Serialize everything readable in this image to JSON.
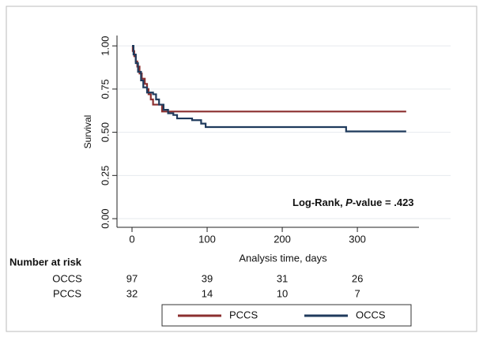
{
  "chart_data": {
    "type": "line",
    "drawstyle": "steps-post",
    "ylabel": "Survival",
    "xlabel": "Analysis time, days",
    "xlim": [
      -20,
      382
    ],
    "ylim": [
      -0.05,
      1.06
    ],
    "xticks": [
      0,
      100,
      200,
      300
    ],
    "yticks": [
      {
        "value": 0,
        "label": "0.00"
      },
      0.25,
      {
        "value": 0.5,
        "label": "0.50"
      },
      0.75,
      {
        "value": 1,
        "label": "1.00"
      }
    ],
    "grid": true,
    "legend": "bottom",
    "annotation": {
      "prefix": "Log-Rank, ",
      "italic": "P",
      "suffix": "-value = .423"
    },
    "series": [
      {
        "name": "PCCS",
        "color": "#8b2f2f",
        "x": [
          0,
          1,
          3,
          5,
          7,
          10,
          13,
          17,
          20,
          22,
          25,
          28,
          40,
          365
        ],
        "values": [
          1.0,
          0.97,
          0.94,
          0.91,
          0.88,
          0.84,
          0.81,
          0.78,
          0.75,
          0.72,
          0.69,
          0.66,
          0.62,
          0.62
        ]
      },
      {
        "name": "OCCS",
        "color": "#1f3a5c",
        "x": [
          0,
          2,
          5,
          8,
          12,
          15,
          20,
          28,
          32,
          36,
          42,
          48,
          55,
          60,
          80,
          92,
          98,
          285,
          365
        ],
        "values": [
          1.0,
          0.95,
          0.9,
          0.85,
          0.8,
          0.76,
          0.73,
          0.72,
          0.69,
          0.66,
          0.63,
          0.61,
          0.6,
          0.58,
          0.57,
          0.55,
          0.53,
          0.505,
          0.505
        ]
      }
    ],
    "risk_table": {
      "title": "Number at risk",
      "rows": [
        {
          "name": "OCCS",
          "values": [
            97,
            39,
            31,
            26
          ]
        },
        {
          "name": "PCCS",
          "values": [
            32,
            14,
            10,
            7
          ]
        }
      ]
    }
  }
}
